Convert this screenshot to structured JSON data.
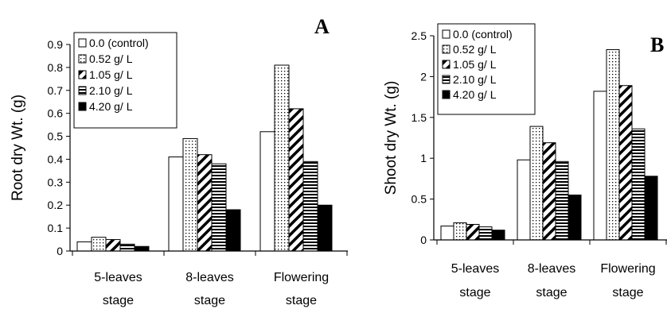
{
  "chart_data": [
    {
      "type": "bar",
      "panel_label": "A",
      "ylabel": "Root dry Wt. (g)",
      "ylim": [
        0,
        0.9
      ],
      "yticks": [
        "0",
        "0.1",
        "0.2",
        "0.3",
        "0.4",
        "0.5",
        "0.6",
        "0.7",
        "0.8",
        "0.9"
      ],
      "categories": [
        [
          "5-leaves",
          "stage"
        ],
        [
          "8-leaves",
          "stage"
        ],
        [
          "Flowering",
          "stage"
        ]
      ],
      "legend_position": "top-left",
      "grid": false,
      "series": [
        {
          "name": "0.0 (control)",
          "pattern": "white",
          "values": [
            0.04,
            0.41,
            0.52
          ]
        },
        {
          "name": "0.52 g/ L",
          "pattern": "dots",
          "values": [
            0.06,
            0.49,
            0.81
          ]
        },
        {
          "name": "1.05 g/ L",
          "pattern": "diagonal",
          "values": [
            0.05,
            0.42,
            0.62
          ]
        },
        {
          "name": "2.10 g/ L",
          "pattern": "horizontal",
          "values": [
            0.03,
            0.38,
            0.39
          ]
        },
        {
          "name": "4.20 g/ L",
          "pattern": "black",
          "values": [
            0.02,
            0.18,
            0.2
          ]
        }
      ]
    },
    {
      "type": "bar",
      "panel_label": "B",
      "ylabel": "Shoot dry Wt. (g)",
      "ylim": [
        0,
        2.5
      ],
      "yticks": [
        "0",
        "0.5",
        "1",
        "1.5",
        "2",
        "2.5"
      ],
      "categories": [
        [
          "5-leaves",
          "stage"
        ],
        [
          "8-leaves",
          "stage"
        ],
        [
          "Flowering",
          "stage"
        ]
      ],
      "legend_position": "top-left",
      "grid": false,
      "series": [
        {
          "name": "0.0 (control)",
          "pattern": "white",
          "values": [
            0.17,
            0.98,
            1.82
          ]
        },
        {
          "name": "0.52 g/ L",
          "pattern": "dots",
          "values": [
            0.21,
            1.39,
            2.33
          ]
        },
        {
          "name": "1.05 g/ L",
          "pattern": "diagonal",
          "values": [
            0.19,
            1.19,
            1.89
          ]
        },
        {
          "name": "2.10 g/ L",
          "pattern": "horizontal",
          "values": [
            0.16,
            0.96,
            1.36
          ]
        },
        {
          "name": "4.20 g/ L",
          "pattern": "black",
          "values": [
            0.12,
            0.55,
            0.78
          ]
        }
      ]
    }
  ]
}
